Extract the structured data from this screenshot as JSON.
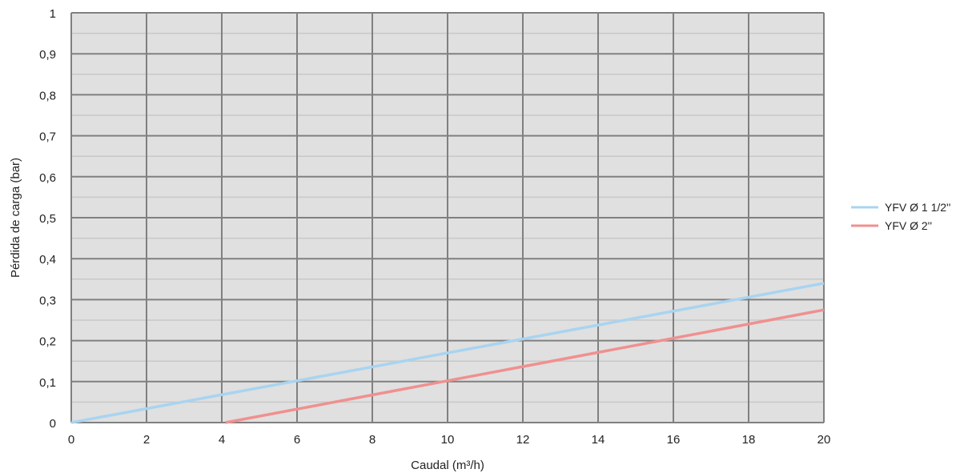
{
  "chart_data": {
    "type": "line",
    "xlabel": "Caudal (m³/h)",
    "ylabel": "Pérdida de carga (bar)",
    "xlim": [
      0,
      20
    ],
    "ylim": [
      0,
      1
    ],
    "x_ticks": [
      "0",
      "2",
      "4",
      "6",
      "8",
      "10",
      "12",
      "14",
      "16",
      "18",
      "20"
    ],
    "y_ticks": [
      "0",
      "0,1",
      "0,2",
      "0,3",
      "0,4",
      "0,5",
      "0,6",
      "0,7",
      "0,8",
      "0,9",
      "1"
    ],
    "grid": true,
    "legend_position": "right",
    "colors": {
      "plot_background": "#e0e0e0",
      "grid_major": "#808080",
      "grid_minor": "#c8c8c8"
    },
    "series": [
      {
        "name": "YFV Ø 1 1/2''",
        "color": "#a8d4f0",
        "points": [
          [
            0,
            0
          ],
          [
            20,
            0.34
          ]
        ]
      },
      {
        "name": "YFV Ø 2''",
        "color": "#f09090",
        "points": [
          [
            4.1,
            0
          ],
          [
            20,
            0.275
          ]
        ]
      }
    ]
  }
}
